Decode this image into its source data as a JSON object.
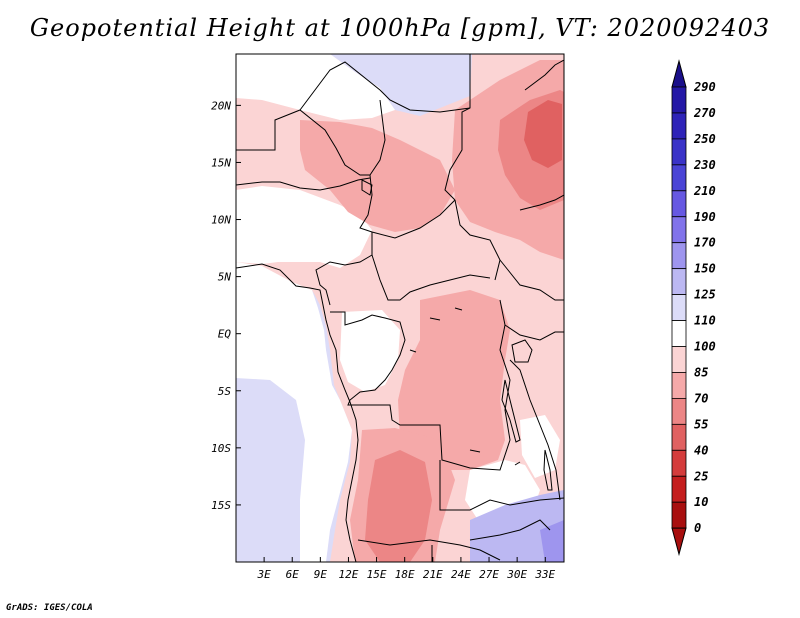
{
  "title": "Geopotential Height at 1000hPa [gpm], VT: 2020092403",
  "credit": "GrADS: IGES/COLA",
  "axes": {
    "lat_labels": [
      "20N",
      "15N",
      "10N",
      "5N",
      "EQ",
      "5S",
      "10S",
      "15S"
    ],
    "lat_values": [
      20,
      15,
      10,
      5,
      0,
      -5,
      -10,
      -15
    ],
    "lon_labels": [
      "3E",
      "6E",
      "9E",
      "12E",
      "15E",
      "18E",
      "21E",
      "24E",
      "27E",
      "30E",
      "33E"
    ],
    "lon_values": [
      3,
      6,
      9,
      12,
      15,
      18,
      21,
      24,
      27,
      30,
      33
    ],
    "lon_range": [
      0,
      35
    ],
    "lat_range": [
      -20,
      24.5
    ]
  },
  "colorbar": {
    "levels": [
      "290",
      "270",
      "250",
      "230",
      "210",
      "190",
      "170",
      "150",
      "125",
      "110",
      "100",
      "85",
      "70",
      "55",
      "40",
      "25",
      "10",
      "0"
    ],
    "colors": [
      "#1a0f8a",
      "#2418a6",
      "#2e23b8",
      "#3a33c8",
      "#4a44d6",
      "#6658e2",
      "#8173ea",
      "#9e95ee",
      "#bcb8f2",
      "#dcdcf8",
      "#ffffff",
      "#fbd4d4",
      "#f5a9a9",
      "#ec8686",
      "#e06161",
      "#d43c3c",
      "#c41e1e",
      "#a80f0f"
    ],
    "top_cap_color": "#1a0f8a",
    "bottom_cap_color": "#a80f0f"
  },
  "field_colors": {
    "ocean": "#dcdcf8",
    "white": "#ffffff",
    "light_pink": "#fbd4d4",
    "pink": "#f5a9a9",
    "salmon": "#ec8686",
    "red": "#e06161",
    "lavender": "#bcb8f2",
    "blue": "#9e95ee"
  }
}
